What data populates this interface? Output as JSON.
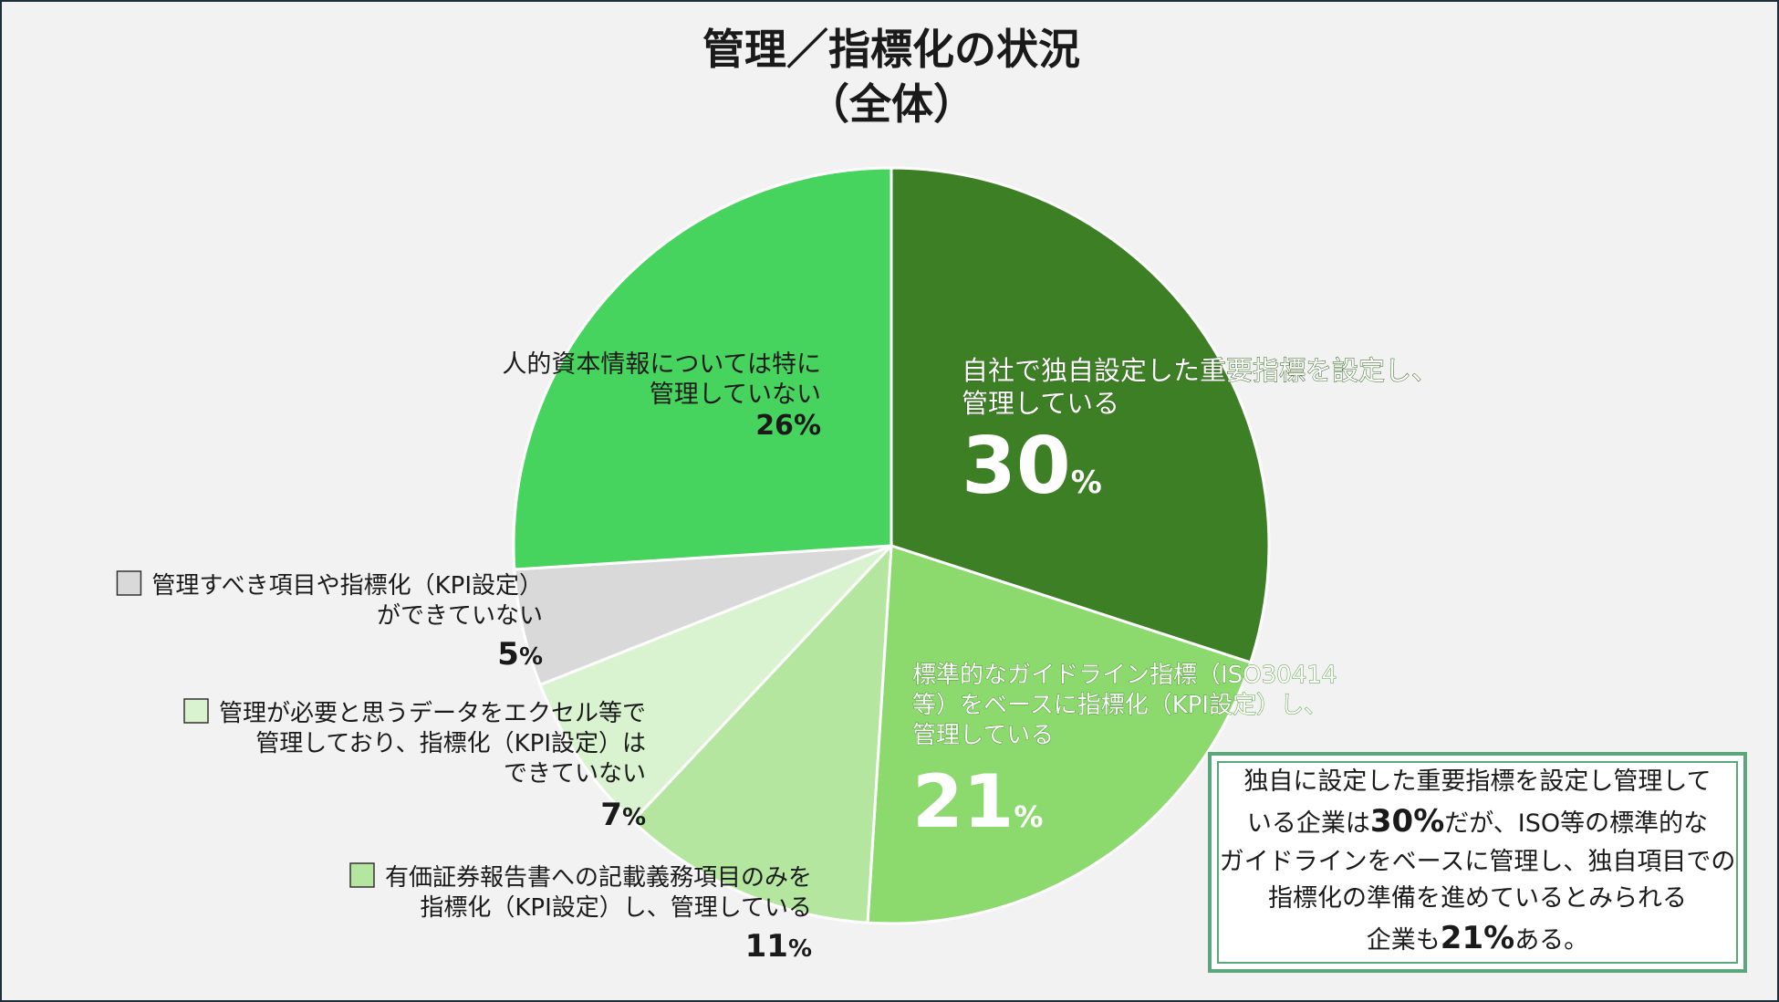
{
  "chart_data": {
    "type": "pie",
    "title_line1": "管理／指標化の状況",
    "title_line2": "（全体）",
    "start": "12 o'clock",
    "direction": "clockwise",
    "slices": [
      {
        "id": "s1",
        "label_lines": [
          "自社で独自設定した重要指標を設定し、",
          "管理している"
        ],
        "value": 30,
        "value_text": "30",
        "unit": "%",
        "color": "#3d7f25",
        "text_color": "#ffffff"
      },
      {
        "id": "s2",
        "label_lines": [
          "標準的なガイドライン指標（ISO30414",
          "等）をベースに指標化（KPI設定）し、",
          "管理している"
        ],
        "value": 21,
        "value_text": "21",
        "unit": "%",
        "color": "#8cd96e",
        "text_color": "#ffffff"
      },
      {
        "id": "s3",
        "label_lines": [
          "有価証券報告書への記載義務項目のみを",
          "指標化（KPI設定）し、管理している"
        ],
        "value": 11,
        "value_text": "11",
        "unit": "%",
        "color": "#b5e6a0",
        "text_color": "#1a1a1a"
      },
      {
        "id": "s4",
        "label_lines": [
          "管理が必要と思うデータをエクセル等で",
          "管理しており、指標化（KPI設定）は",
          "できていない"
        ],
        "value": 7,
        "value_text": "7",
        "unit": "%",
        "color": "#d9f2d0",
        "text_color": "#1a1a1a"
      },
      {
        "id": "s5",
        "label_lines": [
          "管理すべき項目や指標化（KPI設定）",
          "ができていない"
        ],
        "value": 5,
        "value_text": "5",
        "unit": "%",
        "color": "#d9d9d9",
        "text_color": "#1a1a1a"
      },
      {
        "id": "s6",
        "label_lines": [
          "人的資本情報については特に",
          "管理していない"
        ],
        "value": 26,
        "value_text": "26",
        "unit": "%",
        "color": "#47d45e",
        "text_color": "#1a1a1a"
      }
    ]
  },
  "note": {
    "lines": [
      [
        {
          "t": "独自に設定した重要指標を設定し管理して"
        }
      ],
      [
        {
          "t": "いる企業は"
        },
        {
          "t": "30%",
          "b": true
        },
        {
          "t": "だが、ISO等の標準的な"
        }
      ],
      [
        {
          "t": "ガイドラインをベースに管理し、独自項目での"
        }
      ],
      [
        {
          "t": "指標化の準備を進めているとみられる"
        }
      ],
      [
        {
          "t": "企業も"
        },
        {
          "t": "21%",
          "b": true
        },
        {
          "t": "ある。"
        }
      ]
    ]
  }
}
